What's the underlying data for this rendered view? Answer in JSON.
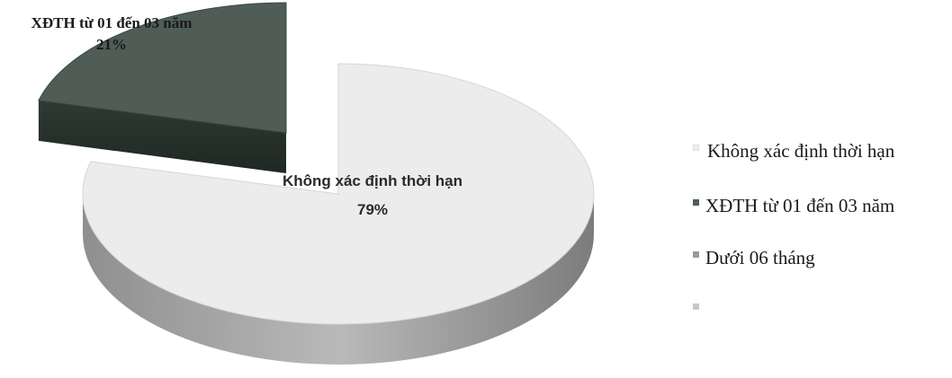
{
  "chart_data": {
    "type": "pie",
    "style": "3d-exploded",
    "categories": [
      "Không xác định thời hạn",
      "XĐTH từ 01 đến 03 năm",
      "Dưới 06 tháng",
      ""
    ],
    "values": [
      79,
      21,
      0,
      0
    ],
    "data_labels": [
      {
        "category": "Không xác định thời hạn",
        "value_text": "79%"
      },
      {
        "category": "XĐTH từ 01 đến 03 năm",
        "value_text": "21%"
      }
    ],
    "colors": [
      "#ececec",
      "#4f5d56",
      "#9a9a9a",
      "#c8c8c8"
    ],
    "legend": {
      "position": "right",
      "entries": [
        "Không xác định thời hạn",
        "XĐTH từ 01 đến 03 năm",
        "Dưới 06 tháng",
        ""
      ]
    }
  }
}
